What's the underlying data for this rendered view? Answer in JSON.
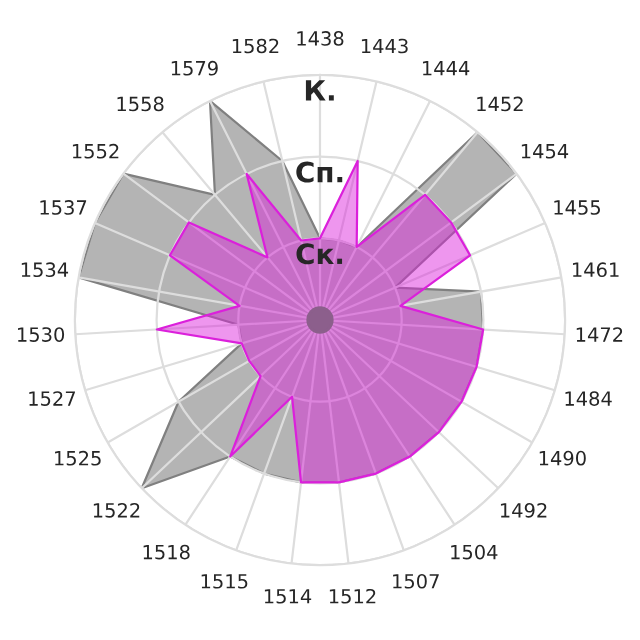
{
  "chart_data": {
    "type": "radar",
    "relative": false,
    "categories": [
      "1438",
      "1443",
      "1444",
      "1452",
      "1454",
      "1455",
      "1461",
      "1472",
      "1484",
      "1490",
      "1492",
      "1504",
      "1507",
      "1512",
      "1514",
      "1515",
      "1518",
      "1522",
      "1525",
      "1527",
      "1530",
      "1534",
      "1537",
      "1552",
      "1558",
      "1579",
      "1582"
    ],
    "series": [
      {
        "color": "#b4b4b4",
        "values": [
          1,
          1,
          1,
          3,
          3,
          1,
          2,
          2,
          2,
          2,
          2,
          2,
          2,
          2,
          2,
          2,
          2,
          3,
          2,
          1,
          1,
          3,
          3,
          3,
          2,
          3,
          2
        ]
      },
      {
        "color": "#db20db",
        "values": [
          1,
          2,
          1,
          2,
          2,
          2,
          1,
          2,
          2,
          2,
          2,
          2,
          2,
          2,
          2,
          1,
          2,
          1,
          1,
          1,
          2,
          1,
          2,
          2,
          1,
          2,
          1
        ]
      }
    ],
    "ylim": [
      0,
      3
    ],
    "yticks": [
      {
        "value": 1,
        "label": "Ск."
      },
      {
        "value": 2,
        "label": "Сп."
      },
      {
        "value": 3,
        "label": "К."
      }
    ],
    "grid": true
  }
}
